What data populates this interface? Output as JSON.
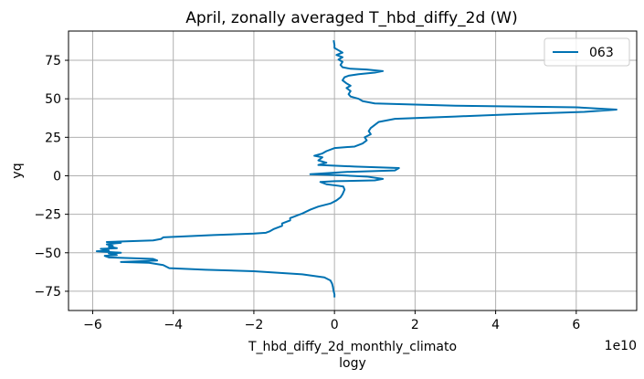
{
  "chart_data": {
    "type": "line",
    "title": "April, zonally averaged T_hbd_diffy_2d (W)",
    "xlabel": "T_hbd_diffy_2d_monthly_climato",
    "xlabel2": "logy",
    "ylabel": "yq",
    "x_offset_label": "1e10",
    "x_scale": 10000000000.0,
    "xlim": [
      -6.6,
      7.5
    ],
    "ylim": [
      -87.5,
      94
    ],
    "x_ticks": [
      -6,
      -4,
      -2,
      0,
      2,
      4,
      6
    ],
    "x_tick_labels": [
      "−6",
      "−4",
      "−2",
      "0",
      "2",
      "4",
      "6"
    ],
    "y_ticks": [
      -75,
      -50,
      -25,
      0,
      25,
      50,
      75
    ],
    "y_tick_labels": [
      "−75",
      "−50",
      "−25",
      "0",
      "25",
      "50",
      "75"
    ],
    "grid": true,
    "legend": {
      "position": "top-right"
    },
    "colors": {
      "series": "#0072b2",
      "grid": "#b0b0b0"
    },
    "series": [
      {
        "name": "063",
        "points": [
          [
            0.0,
            -79
          ],
          [
            0.0,
            -77
          ],
          [
            -0.02,
            -75
          ],
          [
            -0.04,
            -72
          ],
          [
            -0.06,
            -70
          ],
          [
            -0.1,
            -68
          ],
          [
            -0.25,
            -66
          ],
          [
            -0.8,
            -64
          ],
          [
            -2.0,
            -62
          ],
          [
            -3.2,
            -61
          ],
          [
            -4.1,
            -60
          ],
          [
            -4.25,
            -58
          ],
          [
            -4.6,
            -56.5
          ],
          [
            -5.3,
            -56
          ],
          [
            -4.4,
            -55
          ],
          [
            -4.5,
            -54
          ],
          [
            -5.6,
            -53
          ],
          [
            -5.7,
            -52
          ],
          [
            -5.4,
            -51.5
          ],
          [
            -5.6,
            -50.5
          ],
          [
            -5.3,
            -50
          ],
          [
            -5.9,
            -49
          ],
          [
            -5.6,
            -48.5
          ],
          [
            -5.8,
            -47.5
          ],
          [
            -5.4,
            -47
          ],
          [
            -5.6,
            -46
          ],
          [
            -5.5,
            -45.5
          ],
          [
            -5.65,
            -44.5
          ],
          [
            -5.3,
            -43.5
          ],
          [
            -5.65,
            -43
          ],
          [
            -4.5,
            -42
          ],
          [
            -4.3,
            -41
          ],
          [
            -4.25,
            -40
          ],
          [
            -3.0,
            -38.5
          ],
          [
            -2.0,
            -37.5
          ],
          [
            -1.7,
            -37
          ],
          [
            -1.6,
            -36
          ],
          [
            -1.5,
            -34.5
          ],
          [
            -1.3,
            -32.5
          ],
          [
            -1.3,
            -31
          ],
          [
            -1.1,
            -29
          ],
          [
            -1.1,
            -27.5
          ],
          [
            -1.0,
            -26.5
          ],
          [
            -0.9,
            -25.5
          ],
          [
            -0.8,
            -24.5
          ],
          [
            -0.6,
            -22
          ],
          [
            -0.4,
            -20
          ],
          [
            -0.1,
            -18
          ],
          [
            0.05,
            -16
          ],
          [
            0.15,
            -14
          ],
          [
            0.2,
            -12
          ],
          [
            0.25,
            -9
          ],
          [
            0.22,
            -7
          ],
          [
            0.1,
            -6.5
          ],
          [
            -0.2,
            -5.5
          ],
          [
            -0.35,
            -4
          ],
          [
            0.0,
            -3.5
          ],
          [
            1.0,
            -3.0
          ],
          [
            1.2,
            -2.0
          ],
          [
            0.8,
            -0.5
          ],
          [
            0.0,
            0.5
          ],
          [
            -0.6,
            1.0
          ],
          [
            0.3,
            2.5
          ],
          [
            1.5,
            3.5
          ],
          [
            1.6,
            5.0
          ],
          [
            0.5,
            6.0
          ],
          [
            -0.4,
            7.0
          ],
          [
            -0.2,
            8.5
          ],
          [
            -0.4,
            10
          ],
          [
            -0.3,
            12
          ],
          [
            -0.5,
            13
          ],
          [
            -0.3,
            14.5
          ],
          [
            -0.2,
            16
          ],
          [
            0.0,
            18
          ],
          [
            0.5,
            19
          ],
          [
            0.7,
            21
          ],
          [
            0.8,
            23
          ],
          [
            0.75,
            25
          ],
          [
            0.9,
            27
          ],
          [
            0.85,
            29
          ],
          [
            0.9,
            31
          ],
          [
            1.0,
            33
          ],
          [
            1.1,
            35
          ],
          [
            1.5,
            37
          ],
          [
            3.0,
            38.5
          ],
          [
            4.5,
            40
          ],
          [
            6.2,
            41.5
          ],
          [
            7.0,
            43
          ],
          [
            6.0,
            44.5
          ],
          [
            3.0,
            45.5
          ],
          [
            1.0,
            47
          ],
          [
            0.7,
            48.5
          ],
          [
            0.6,
            50
          ],
          [
            0.4,
            51.5
          ],
          [
            0.35,
            53
          ],
          [
            0.4,
            55
          ],
          [
            0.3,
            57
          ],
          [
            0.4,
            58.5
          ],
          [
            0.3,
            60
          ],
          [
            0.2,
            62
          ],
          [
            0.25,
            64
          ],
          [
            0.35,
            65
          ],
          [
            0.6,
            66
          ],
          [
            1.0,
            67
          ],
          [
            1.2,
            68
          ],
          [
            0.8,
            69
          ],
          [
            0.4,
            69.5
          ],
          [
            0.2,
            70.5
          ],
          [
            0.15,
            72
          ],
          [
            0.2,
            74
          ],
          [
            0.1,
            75.5
          ],
          [
            0.2,
            77
          ],
          [
            0.05,
            78.5
          ],
          [
            0.2,
            80
          ],
          [
            0.1,
            81.5
          ],
          [
            0.0,
            83
          ],
          [
            0.0,
            85
          ],
          [
            -0.02,
            88
          ]
        ]
      }
    ]
  }
}
